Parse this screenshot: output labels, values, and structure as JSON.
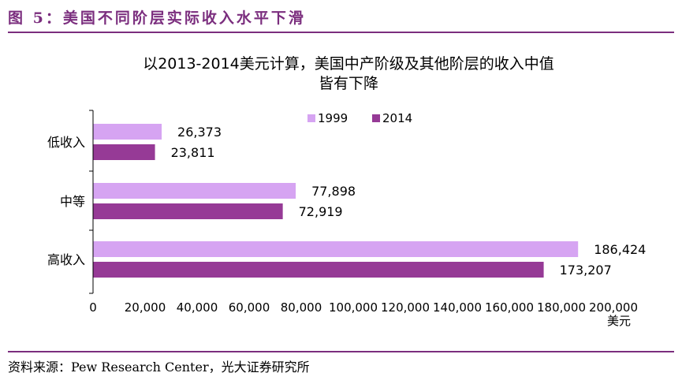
{
  "figure_caption": "图 5：美国不同阶层实际收入水平下滑",
  "source_note": "资料来源：Pew Research Center，光大证券研究所",
  "colors": {
    "accent": "#7B2E7E",
    "series_1999": "#D6A4F2",
    "series_2014": "#963A96"
  },
  "chart_data": {
    "type": "bar",
    "orientation": "horizontal",
    "title_lines": [
      "以2013-2014美元计算，美国中产阶级及其他阶层的收入中值",
      "皆有下降"
    ],
    "categories": [
      "低收入",
      "中等",
      "高收入"
    ],
    "series": [
      {
        "name": "1999",
        "values": [
          26373,
          77898,
          186424
        ],
        "labels": [
          "26,373",
          "77,898",
          "186,424"
        ]
      },
      {
        "name": "2014",
        "values": [
          23811,
          72919,
          173207
        ],
        "labels": [
          "23,811",
          "72,919",
          "173,207"
        ]
      }
    ],
    "xlim": [
      0,
      200000
    ],
    "x_ticks": [
      0,
      20000,
      40000,
      60000,
      80000,
      100000,
      120000,
      140000,
      160000,
      180000,
      200000
    ],
    "x_tick_labels": [
      "0",
      "20,000",
      "40,000",
      "60,000",
      "80,000",
      "100,000",
      "120,000",
      "140,000",
      "160,000",
      "180,000",
      "200,000"
    ],
    "xlabel": "美元",
    "legend_position": "top-right",
    "grid": false
  }
}
